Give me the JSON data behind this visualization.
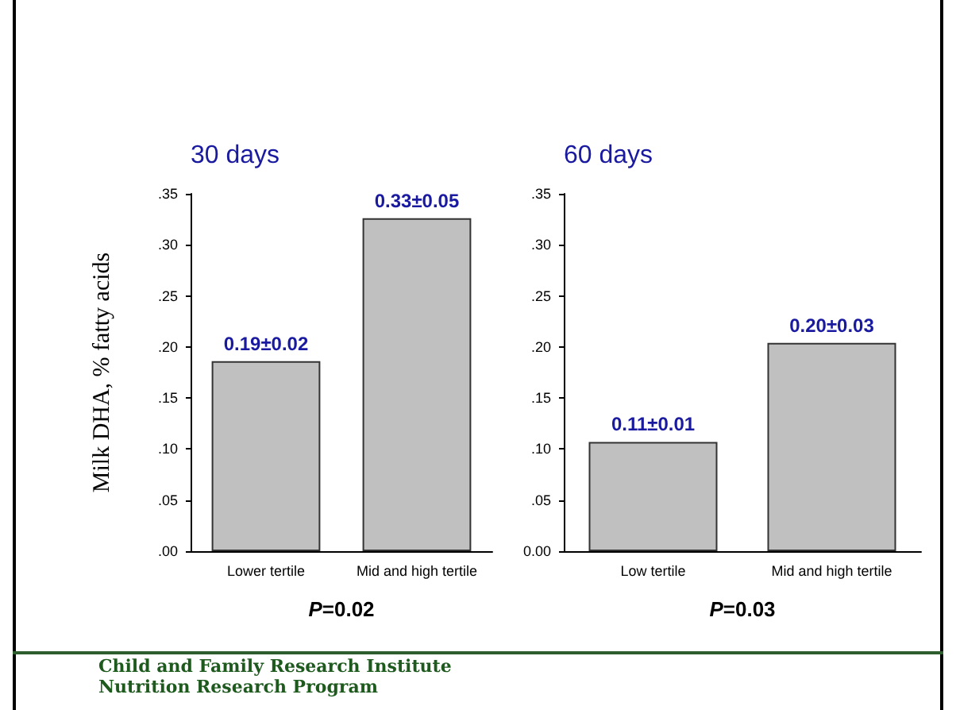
{
  "chart_data": [
    {
      "type": "bar",
      "title": "30 days",
      "ylabel": "Milk DHA, % fatty acids",
      "xlabel": "P=0.02",
      "categories": [
        "Lower tertile",
        "Mid and high tertile"
      ],
      "values": [
        0.186,
        0.326
      ],
      "value_labels": [
        "0.19±0.02",
        "0.33±0.05"
      ],
      "color": "#c0c0c0",
      "ylim": [
        0,
        0.35
      ],
      "yticks": [
        {
          "value": 0,
          "label": ".00"
        },
        {
          "value": 0.05,
          "label": ".05"
        },
        {
          "value": 0.1,
          "label": ".10"
        },
        {
          "value": 0.15,
          "label": ".15"
        },
        {
          "value": 0.2,
          "label": ".20"
        },
        {
          "value": 0.25,
          "label": ".25"
        },
        {
          "value": 0.3,
          "label": ".30"
        },
        {
          "value": 0.35,
          "label": ".35"
        }
      ],
      "grid": false,
      "annotations": [
        "Child and Family Research Institute",
        "Nutrition Research Program"
      ]
    },
    {
      "type": "bar",
      "title": "60 days",
      "xlabel": "P=0.03",
      "categories": [
        "Low tertile",
        "Mid and high tertile"
      ],
      "values": [
        0.107,
        0.204
      ],
      "value_labels": [
        "0.11±0.01",
        "0.20±0.03"
      ],
      "color": "#c0c0c0",
      "ylim": [
        0,
        0.35
      ],
      "yticks": [
        {
          "value": 0,
          "label": "0.00"
        },
        {
          "value": 0.05,
          "label": ".05"
        },
        {
          "value": 0.1,
          "label": ".10"
        },
        {
          "value": 0.15,
          "label": ".15"
        },
        {
          "value": 0.2,
          "label": ".20"
        },
        {
          "value": 0.25,
          "label": ".25"
        },
        {
          "value": 0.3,
          "label": ".30"
        },
        {
          "value": 0.35,
          "label": ".35"
        }
      ],
      "grid": false
    }
  ]
}
